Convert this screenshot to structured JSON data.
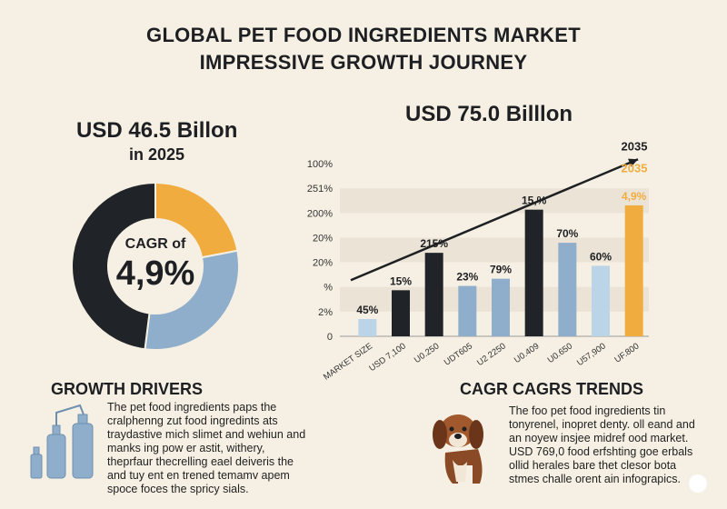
{
  "header": {
    "title_line1": "GLOBAL PET FOOD INGREDIENTS MARKET",
    "title_line2": "IMPRESSIVE GROWTH JOURNEY"
  },
  "left_panel": {
    "value": "USD 46.5 Billon",
    "year": "in 2025",
    "cagr_label": "CAGR of",
    "cagr_value": "4,9%",
    "donut_colors": [
      "#f0ac3f",
      "#8eaecb",
      "#202327"
    ],
    "donut_shares": [
      0.22,
      0.3,
      0.48
    ]
  },
  "right_panel": {
    "value": "USD 75.0 Billlon"
  },
  "chart_data": {
    "type": "bar",
    "y_tick_labels": [
      "0",
      "2%",
      "%",
      "20%",
      "20%",
      "200%",
      "251%",
      "100%"
    ],
    "categories": [
      "MARKET SIZE",
      "USD 7,100",
      "U0.250",
      "UDT605",
      "U2 2250",
      "U0.409",
      "U0.650",
      "U57,900",
      "UF.800"
    ],
    "values": [
      1.2,
      3.2,
      5.8,
      3.5,
      4.0,
      8.8,
      6.5,
      4.9,
      9.1
    ],
    "bar_labels": [
      "45%",
      "15%",
      "215%",
      "23%",
      "79%",
      "15,%",
      "70%",
      "60%",
      "4,9%"
    ],
    "bar_colors": [
      "#bcd4e8",
      "#202327",
      "#202327",
      "#8eaecb",
      "#8eaecb",
      "#202327",
      "#8eaecb",
      "#bcd4e8",
      "#f0ac3f"
    ],
    "ylim": [
      0,
      12
    ],
    "trend_start": 3.9,
    "trend_end": 12.3,
    "trend_label": "2035",
    "highlight_label": "2035",
    "highlight_color": "#f0ac3f"
  },
  "growth_drivers": {
    "title": "GROWTH DRIVERS",
    "text": "The pet food ingredients paps the cralphenng zut food ingredints ats traydastive mich slimet and wehiun and manks ing pow er astit, withery, theprfaur thecrelling eael deiveris the and tuy ent en trened temamv apem spoce foces the spricy sials."
  },
  "cagr_trends": {
    "title": "CAGR CAGRS TRENDS",
    "text": "The foo pet food ingredients tin tonyrenel, inopret denty. oll eand and an noyew insjee midref ood market. USD 769,0 food erfshting goe erbals ollid herales bare thet clesor bota stmes challe orent ain infograpics."
  },
  "icons": [
    "bottles-icon",
    "dog-icon"
  ]
}
